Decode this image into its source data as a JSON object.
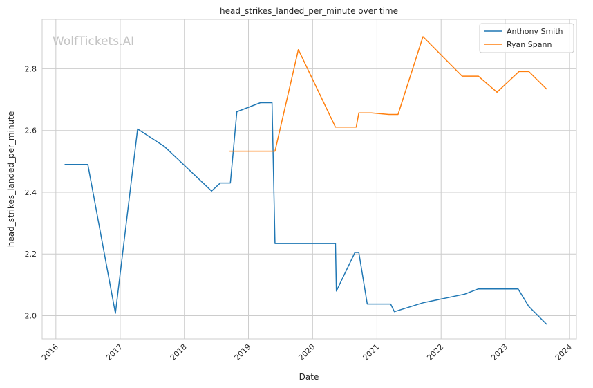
{
  "chart_data": {
    "type": "line",
    "title": "head_strikes_landed_per_minute over time",
    "xlabel": "Date",
    "ylabel": "head_strikes_landed_per_minute",
    "watermark": "WolfTickets.AI",
    "xlim": [
      "2015-10-15",
      "2024-02-10"
    ],
    "ylim": [
      1.925,
      2.96
    ],
    "x_ticks": [
      "2016-01-01",
      "2017-01-01",
      "2018-01-01",
      "2019-01-01",
      "2020-01-01",
      "2021-01-01",
      "2022-01-01",
      "2023-01-01",
      "2024-01-01"
    ],
    "x_tick_labels": [
      "2016",
      "2017",
      "2018",
      "2019",
      "2020",
      "2021",
      "2022",
      "2023",
      "2024"
    ],
    "y_ticks": [
      2.0,
      2.2,
      2.4,
      2.6,
      2.8
    ],
    "y_tick_labels": [
      "2.0",
      "2.2",
      "2.4",
      "2.6",
      "2.8"
    ],
    "grid": true,
    "legend_position": "top-right",
    "series": [
      {
        "name": "Anthony Smith",
        "color": "#1f77b4",
        "points": [
          [
            "2016-02-20",
            2.49
          ],
          [
            "2016-07-01",
            2.49
          ],
          [
            "2016-12-05",
            2.008
          ],
          [
            "2017-04-10",
            2.605
          ],
          [
            "2017-09-10",
            2.548
          ],
          [
            "2018-06-05",
            2.404
          ],
          [
            "2018-07-25",
            2.43
          ],
          [
            "2018-09-20",
            2.43
          ],
          [
            "2018-10-27",
            2.661
          ],
          [
            "2019-03-10",
            2.69
          ],
          [
            "2019-05-15",
            2.69
          ],
          [
            "2019-06-01",
            2.234
          ],
          [
            "2020-05-10",
            2.234
          ],
          [
            "2020-05-15",
            2.08
          ],
          [
            "2020-08-29",
            2.205
          ],
          [
            "2020-09-20",
            2.205
          ],
          [
            "2020-11-07",
            2.038
          ],
          [
            "2021-03-20",
            2.038
          ],
          [
            "2021-04-10",
            2.013
          ],
          [
            "2021-09-20",
            2.042
          ],
          [
            "2022-05-15",
            2.07
          ],
          [
            "2022-08-01",
            2.087
          ],
          [
            "2023-03-15",
            2.087
          ],
          [
            "2023-05-15",
            2.03
          ],
          [
            "2023-08-25",
            1.972
          ]
        ]
      },
      {
        "name": "Ryan Spann",
        "color": "#ff7f0e",
        "points": [
          [
            "2018-09-15",
            2.533
          ],
          [
            "2019-06-01",
            2.533
          ],
          [
            "2019-10-12",
            2.862
          ],
          [
            "2020-05-10",
            2.611
          ],
          [
            "2020-09-05",
            2.611
          ],
          [
            "2020-09-20",
            2.657
          ],
          [
            "2020-12-01",
            2.657
          ],
          [
            "2021-03-10",
            2.652
          ],
          [
            "2021-05-01",
            2.652
          ],
          [
            "2021-09-20",
            2.904
          ],
          [
            "2022-05-01",
            2.776
          ],
          [
            "2022-08-01",
            2.776
          ],
          [
            "2022-11-15",
            2.724
          ],
          [
            "2023-03-20",
            2.791
          ],
          [
            "2023-05-15",
            2.791
          ],
          [
            "2023-08-25",
            2.734
          ]
        ]
      }
    ]
  }
}
